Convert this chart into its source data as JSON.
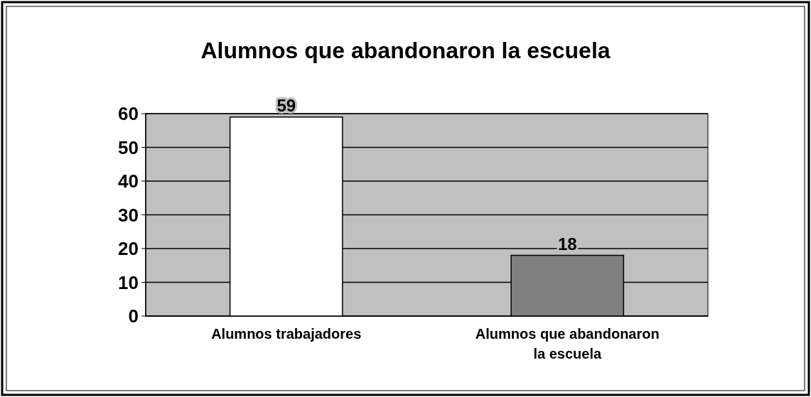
{
  "chart_data": {
    "type": "bar",
    "title": "Alumnos que abandonaron la escuela",
    "categories": [
      "Alumnos trabajadores",
      "Alumnos que abandonaron la escuela"
    ],
    "values": [
      59,
      18
    ],
    "colors": [
      "#ffffff",
      "#808080"
    ],
    "ylim": [
      0,
      60
    ],
    "yticks": [
      0,
      10,
      20,
      30,
      40,
      50,
      60
    ],
    "grid": "y",
    "data_labels": true
  }
}
